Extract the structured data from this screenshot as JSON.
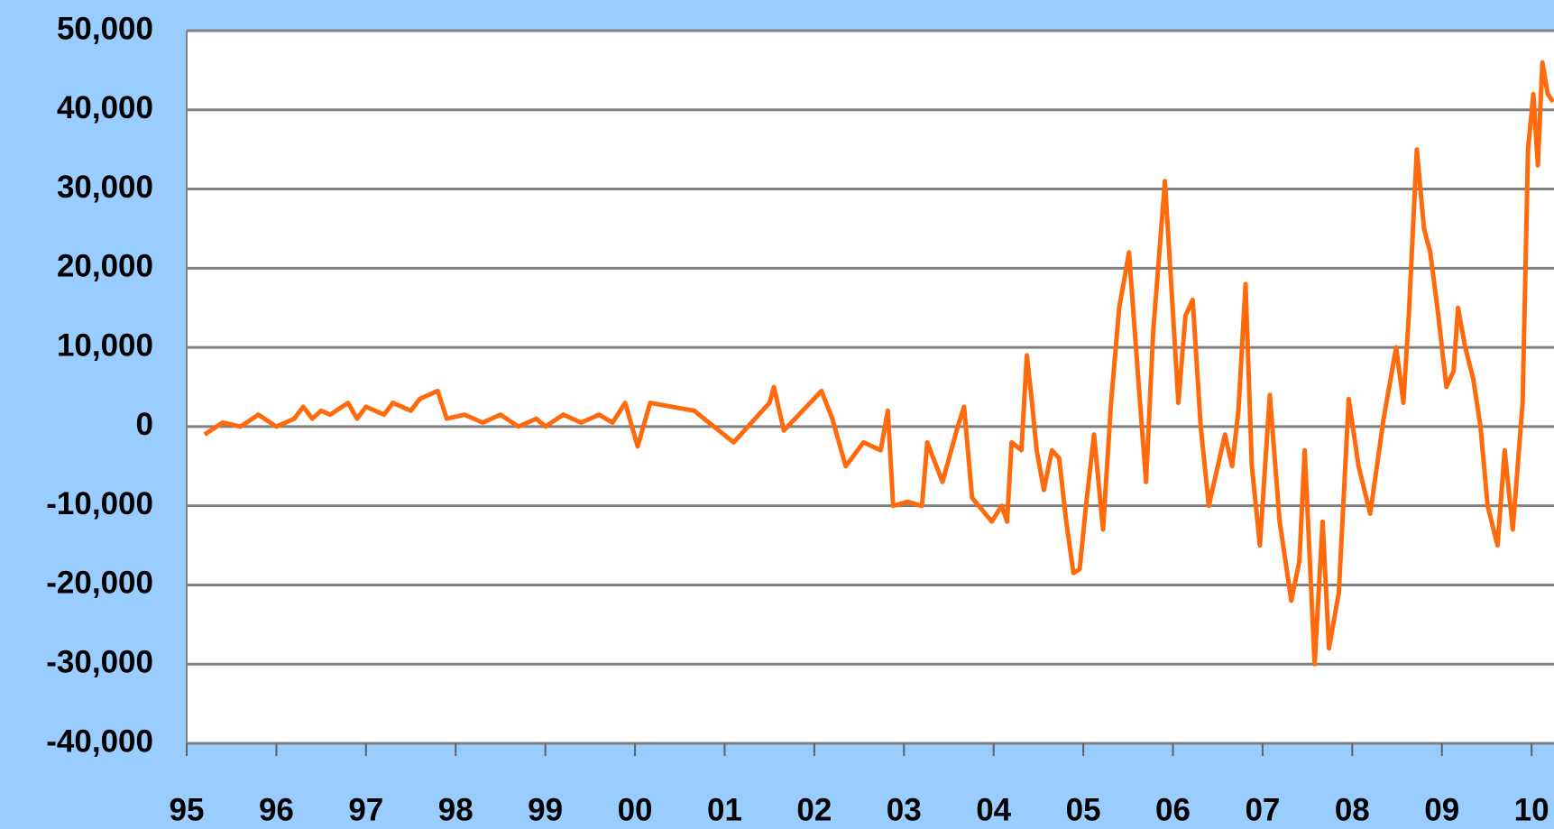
{
  "chart_data": {
    "type": "line",
    "xlim": [
      1995,
      2010.25
    ],
    "xticks": [
      {
        "value": 1995,
        "label": "95"
      },
      {
        "value": 1996,
        "label": "96"
      },
      {
        "value": 1997,
        "label": "97"
      },
      {
        "value": 1998,
        "label": "98"
      },
      {
        "value": 1999,
        "label": "99"
      },
      {
        "value": 2000,
        "label": "00"
      },
      {
        "value": 2001,
        "label": "01"
      },
      {
        "value": 2002,
        "label": "02"
      },
      {
        "value": 2003,
        "label": "03"
      },
      {
        "value": 2004,
        "label": "04"
      },
      {
        "value": 2005,
        "label": "05"
      },
      {
        "value": 2006,
        "label": "06"
      },
      {
        "value": 2007,
        "label": "07"
      },
      {
        "value": 2008,
        "label": "08"
      },
      {
        "value": 2009,
        "label": "09"
      },
      {
        "value": 2010,
        "label": "10"
      }
    ],
    "ylim": [
      -40000,
      50000
    ],
    "yticks": [
      {
        "value": -40000,
        "label": "-40,000"
      },
      {
        "value": -30000,
        "label": "-30,000"
      },
      {
        "value": -20000,
        "label": "-20,000"
      },
      {
        "value": -10000,
        "label": "-10,000"
      },
      0,
      {
        "value": 10000,
        "label": "10,000"
      },
      {
        "value": 20000,
        "label": "20,000"
      },
      {
        "value": 30000,
        "label": "30,000"
      },
      {
        "value": 40000,
        "label": "40,000"
      },
      {
        "value": 50000,
        "label": "50,000"
      }
    ],
    "grid": true,
    "series": [
      {
        "color": "#ff6a0d",
        "x": [
          1995.2,
          1995.4,
          1995.6,
          1995.8,
          1996.0,
          1996.1,
          1996.2,
          1996.3,
          1996.4,
          1996.5,
          1996.6,
          1996.8,
          1996.9,
          1997.0,
          1997.2,
          1997.3,
          1997.5,
          1997.6,
          1997.8,
          1997.9,
          1998.1,
          1998.3,
          1998.5,
          1998.7,
          1998.9,
          1999.0,
          1999.2,
          1999.4,
          1999.6,
          1999.75,
          1999.89,
          2000.03,
          2000.17,
          2000.66,
          2001.1,
          2001.5,
          2001.55,
          2001.66,
          2002.08,
          2002.2,
          2002.35,
          2002.55,
          2002.74,
          2002.82,
          2002.88,
          2003.04,
          2003.2,
          2003.26,
          2003.43,
          2003.6,
          2003.67,
          2003.76,
          2003.98,
          2004.09,
          2004.15,
          2004.2,
          2004.31,
          2004.37,
          2004.42,
          2004.48,
          2004.56,
          2004.65,
          2004.73,
          2004.81,
          2004.89,
          2004.96,
          2005.03,
          2005.12,
          2005.22,
          2005.31,
          2005.4,
          2005.51,
          2005.62,
          2005.7,
          2005.78,
          2005.91,
          2005.97,
          2006.06,
          2006.14,
          2006.22,
          2006.31,
          2006.4,
          2006.5,
          2006.58,
          2006.66,
          2006.73,
          2006.81,
          2006.88,
          2006.97,
          2007.08,
          2007.19,
          2007.32,
          2007.41,
          2007.47,
          2007.58,
          2007.67,
          2007.74,
          2007.85,
          2007.96,
          2008.07,
          2008.2,
          2008.35,
          2008.49,
          2008.57,
          2008.63,
          2008.72,
          2008.8,
          2008.87,
          2008.96,
          2009.05,
          2009.13,
          2009.18,
          2009.26,
          2009.35,
          2009.43,
          2009.51,
          2009.62,
          2009.7,
          2009.79,
          2009.9,
          2009.96,
          2010.02,
          2010.07,
          2010.12,
          2010.18,
          2010.24
        ],
        "values": [
          -1000,
          500,
          0,
          1500,
          0,
          500,
          1000,
          2500,
          1000,
          2000,
          1500,
          3000,
          1000,
          2500,
          1500,
          3000,
          2000,
          3500,
          4500,
          1000,
          1500,
          500,
          1500,
          0,
          1000,
          0,
          1500,
          500,
          1500,
          500,
          3000,
          -2500,
          3000,
          2000,
          -2000,
          3000,
          5000,
          -500,
          4500,
          1000,
          -5000,
          -2000,
          -3000,
          2000,
          -10000,
          -9500,
          -10000,
          -2000,
          -7000,
          0,
          2500,
          -9000,
          -12000,
          -10000,
          -12000,
          -2000,
          -3000,
          9000,
          4000,
          -3000,
          -8000,
          -3000,
          -4000,
          -12000,
          -18500,
          -18000,
          -10000,
          -1000,
          -13000,
          3000,
          15000,
          22000,
          5000,
          -7000,
          12000,
          31000,
          20000,
          3000,
          14000,
          16000,
          0,
          -10000,
          -5000,
          -1000,
          -5000,
          2000,
          18000,
          -5000,
          -15000,
          4000,
          -12000,
          -22000,
          -17000,
          -3000,
          -30000,
          -12000,
          -28000,
          -21000,
          3500,
          -5000,
          -11000,
          1000,
          10000,
          3000,
          14000,
          35000,
          25000,
          22000,
          14000,
          5000,
          7000,
          15000,
          10000,
          6000,
          0,
          -10000,
          -15000,
          -3000,
          -13000,
          3000,
          35000,
          42000,
          33000,
          46000,
          42000,
          41000
        ]
      }
    ]
  }
}
